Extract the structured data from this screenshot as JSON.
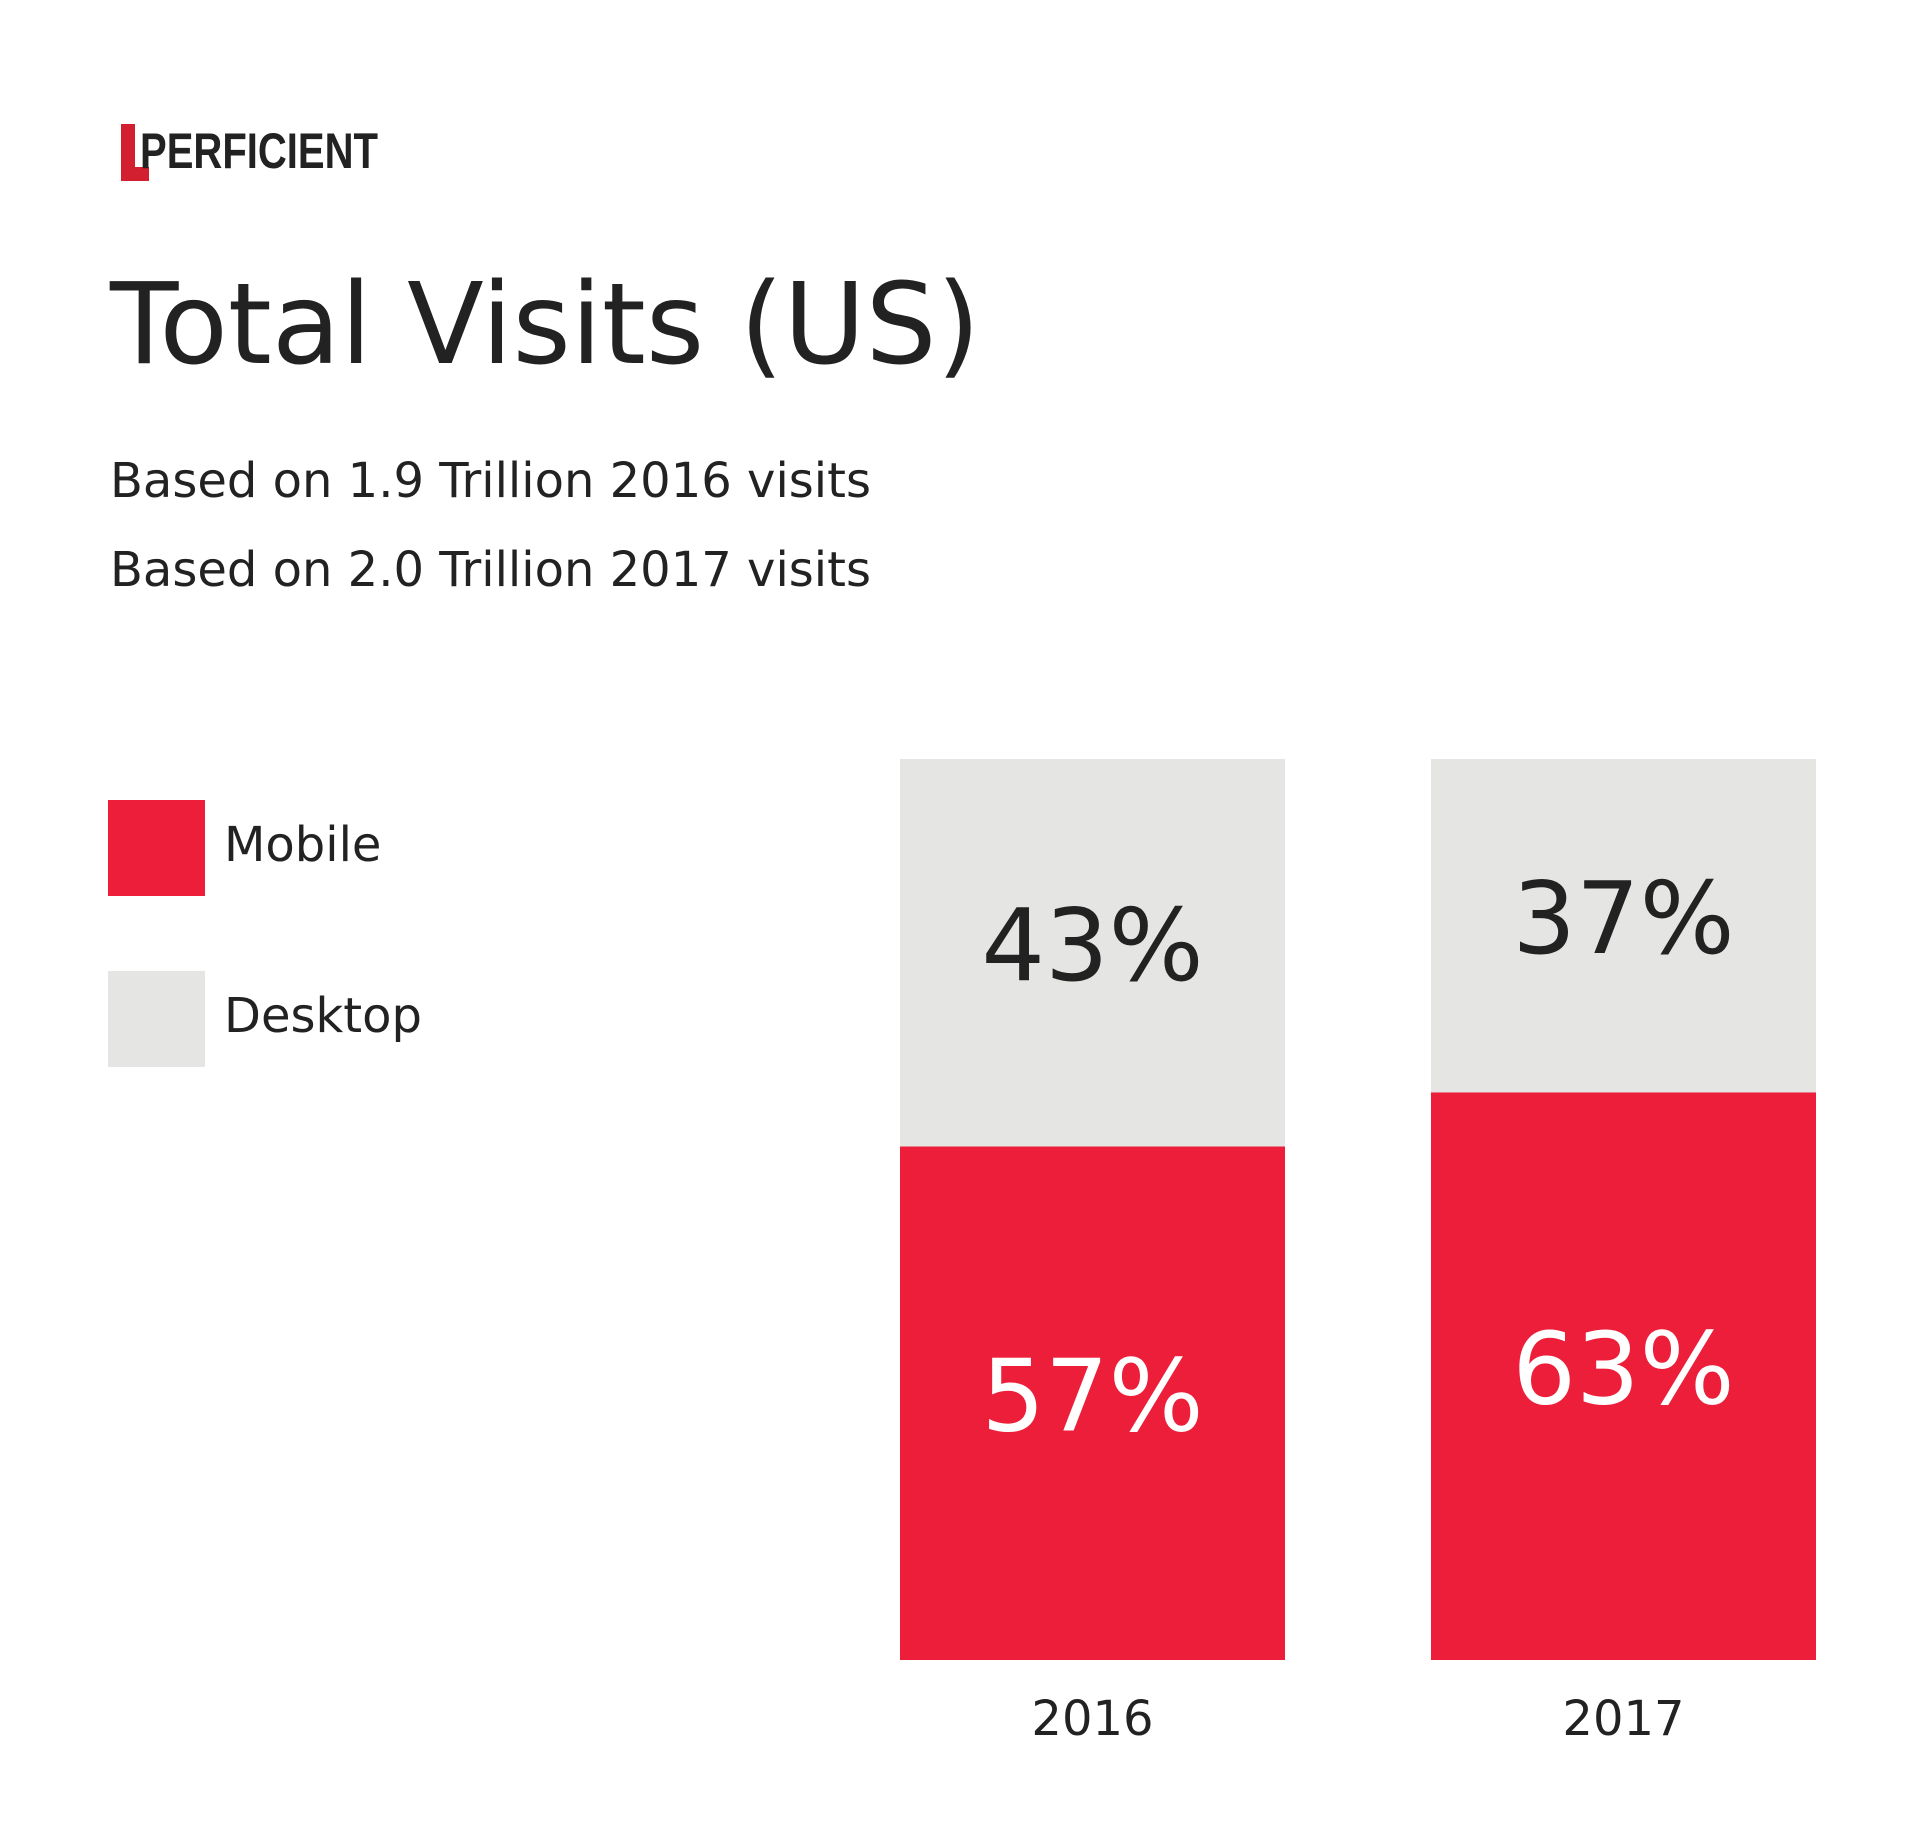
{
  "logo": "PERFICIENT",
  "chart_data": {
    "type": "stacked-bar",
    "title": "Total Visits (US)",
    "subtitle": [
      "Based on 1.9 Trillion 2016 visits",
      "Based on 2.0 Trillion 2017 visits"
    ],
    "categories": [
      "2016",
      "2017"
    ],
    "series": [
      {
        "name": "Mobile",
        "color": "#ec1e39",
        "label_color": "#ffffff",
        "values": [
          57,
          63
        ],
        "value_labels": [
          "57%",
          "63%"
        ]
      },
      {
        "name": "Desktop",
        "color": "#e5e5e3",
        "label_color": "#222222",
        "values": [
          43,
          37
        ],
        "value_labels": [
          "43%",
          "37%"
        ]
      }
    ],
    "ylim": [
      0,
      100
    ],
    "grid": false,
    "legend": "left"
  }
}
